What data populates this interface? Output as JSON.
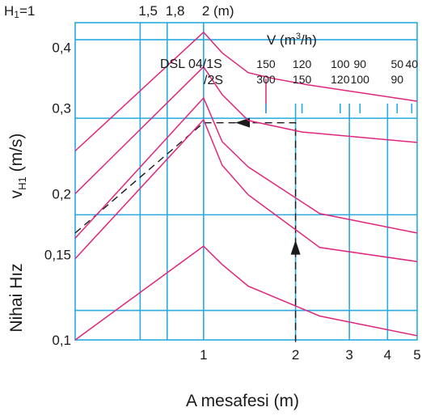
{
  "chart_data": {
    "type": "line",
    "xlabel": "A mesafesi (m)",
    "ylabel_side": "Nihai Hız",
    "ylabel_symbol": "v",
    "ylabel_subscript": "H1",
    "ylabel_unit": "(m/s)",
    "x_scale": "log",
    "y_scale": "log",
    "xlim": [
      0.38,
      5
    ],
    "ylim": [
      0.1,
      0.45
    ],
    "x_ticks": [
      {
        "label": "1",
        "value": 1
      },
      {
        "label": "2",
        "value": 2
      },
      {
        "label": "3",
        "value": 3
      },
      {
        "label": "4",
        "value": 4
      },
      {
        "label": "5",
        "value": 5
      }
    ],
    "y_ticks": [
      {
        "label": "0,4",
        "value": 0.4
      },
      {
        "label": "0,3",
        "value": 0.3
      },
      {
        "label": "0,2",
        "value": 0.2
      },
      {
        "label": "0,15",
        "value": 0.15
      },
      {
        "label": "0,1",
        "value": 0.1
      }
    ],
    "top_scale": {
      "lead": "H",
      "lead_sub": "1",
      "first": "=1",
      "items": [
        {
          "label": "1,5",
          "value": 0.62
        },
        {
          "label": "1,8",
          "value": 0.76
        },
        {
          "label": "2 (m)",
          "value": 1
        }
      ]
    },
    "flow": {
      "title": "V (m",
      "title_sup": "3",
      "title_end": "/h)",
      "series_label_top": "DSL 04/1S",
      "series_label_bottom": "/2S",
      "columns": [
        {
          "top": "150",
          "bottom": "300",
          "x": 1.6
        },
        {
          "top": "120",
          "bottom": "150",
          "x": 2.1
        },
        {
          "top": "100",
          "bottom": "120",
          "x": 2.8
        },
        {
          "top": "90",
          "bottom": "100",
          "x": 3.25
        },
        {
          "top": "50",
          "bottom": "90",
          "x": 4.3
        },
        {
          "top": "40",
          "bottom": "",
          "x": 4.8
        }
      ]
    },
    "series": [
      {
        "x": [
          0.38,
          1,
          1.15,
          1.4,
          1.7,
          2.2,
          5
        ],
        "y": [
          0.245,
          0.43,
          0.39,
          0.355,
          0.345,
          0.335,
          0.31
        ]
      },
      {
        "x": [
          0.38,
          1,
          1.15,
          1.4,
          2.1,
          5
        ],
        "y": [
          0.2,
          0.365,
          0.32,
          0.283,
          0.268,
          0.255
        ]
      },
      {
        "x": [
          0.38,
          1,
          1.15,
          1.4,
          2.4,
          5
        ],
        "y": [
          0.162,
          0.315,
          0.256,
          0.227,
          0.182,
          0.166
        ]
      },
      {
        "x": [
          0.38,
          1,
          1.15,
          1.4,
          2.4,
          5
        ],
        "y": [
          0.147,
          0.284,
          0.229,
          0.199,
          0.155,
          0.145
        ]
      },
      {
        "x": [
          0.38,
          1,
          1.15,
          1.4,
          2.4,
          5
        ],
        "y": [
          0.1,
          0.156,
          0.143,
          0.129,
          0.112,
          0.102
        ]
      }
    ],
    "guide": {
      "path_x": [
        0.38,
        1,
        2,
        2
      ],
      "path_y": [
        0.166,
        0.28,
        0.28,
        0.099
      ],
      "arrow_up": {
        "x": 2,
        "y": 0.151
      },
      "arrow_left": {
        "x": 1.4,
        "y": 0.28
      }
    },
    "colors": {
      "grid": "#29a9e0",
      "series": "#e0257c",
      "text": "#1a1a1a"
    }
  }
}
